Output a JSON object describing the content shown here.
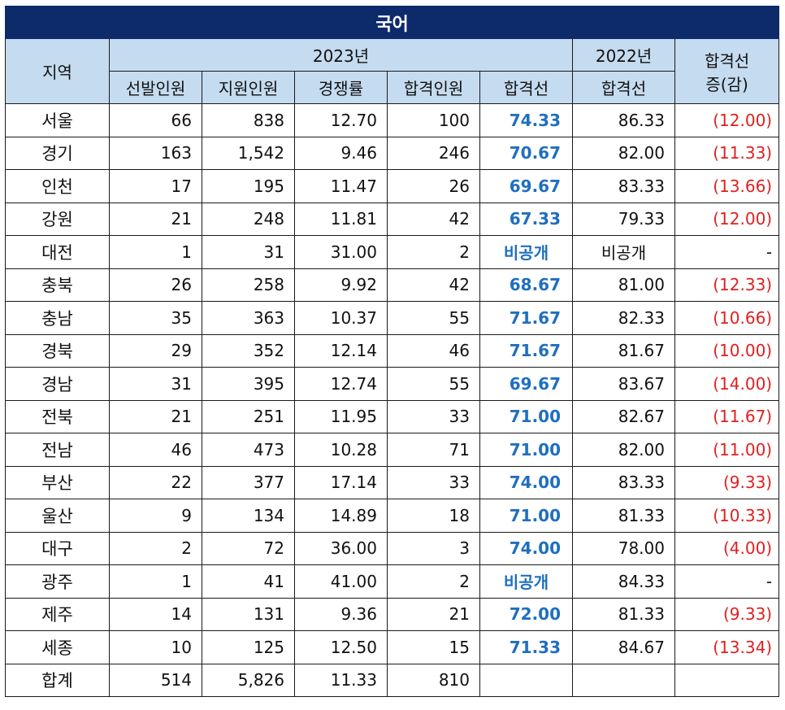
{
  "title": "국어",
  "headers": {
    "region": "지역",
    "year2023": "2023년",
    "year2022": "2022년",
    "change": "합격선\n증(감)",
    "change_line1": "합격선",
    "change_line2": "증(감)",
    "sub": [
      "선발인원",
      "지원인원",
      "경쟁률",
      "합격인원",
      "합격선"
    ],
    "sub2022": "합격선"
  },
  "rows": [
    {
      "region": "서울",
      "select": "66",
      "apply": "838",
      "ratio": "12.70",
      "passed": "100",
      "cut2023": "74.33",
      "cut2022": "86.33",
      "diff": "(12.00)"
    },
    {
      "region": "경기",
      "select": "163",
      "apply": "1,542",
      "ratio": "9.46",
      "passed": "246",
      "cut2023": "70.67",
      "cut2022": "82.00",
      "diff": "(11.33)"
    },
    {
      "region": "인천",
      "select": "17",
      "apply": "195",
      "ratio": "11.47",
      "passed": "26",
      "cut2023": "69.67",
      "cut2022": "83.33",
      "diff": "(13.66)"
    },
    {
      "region": "강원",
      "select": "21",
      "apply": "248",
      "ratio": "11.81",
      "passed": "42",
      "cut2023": "67.33",
      "cut2022": "79.33",
      "diff": "(12.00)"
    },
    {
      "region": "대전",
      "select": "1",
      "apply": "31",
      "ratio": "31.00",
      "passed": "2",
      "cut2023": "비공개",
      "cut2022": "비공개",
      "diff": "-"
    },
    {
      "region": "충북",
      "select": "26",
      "apply": "258",
      "ratio": "9.92",
      "passed": "42",
      "cut2023": "68.67",
      "cut2022": "81.00",
      "diff": "(12.33)"
    },
    {
      "region": "충남",
      "select": "35",
      "apply": "363",
      "ratio": "10.37",
      "passed": "55",
      "cut2023": "71.67",
      "cut2022": "82.33",
      "diff": "(10.66)"
    },
    {
      "region": "경북",
      "select": "29",
      "apply": "352",
      "ratio": "12.14",
      "passed": "46",
      "cut2023": "71.67",
      "cut2022": "81.67",
      "diff": "(10.00)"
    },
    {
      "region": "경남",
      "select": "31",
      "apply": "395",
      "ratio": "12.74",
      "passed": "55",
      "cut2023": "69.67",
      "cut2022": "83.67",
      "diff": "(14.00)"
    },
    {
      "region": "전북",
      "select": "21",
      "apply": "251",
      "ratio": "11.95",
      "passed": "33",
      "cut2023": "71.00",
      "cut2022": "82.67",
      "diff": "(11.67)"
    },
    {
      "region": "전남",
      "select": "46",
      "apply": "473",
      "ratio": "10.28",
      "passed": "71",
      "cut2023": "71.00",
      "cut2022": "82.00",
      "diff": "(11.00)"
    },
    {
      "region": "부산",
      "select": "22",
      "apply": "377",
      "ratio": "17.14",
      "passed": "33",
      "cut2023": "74.00",
      "cut2022": "83.33",
      "diff": "(9.33)"
    },
    {
      "region": "울산",
      "select": "9",
      "apply": "134",
      "ratio": "14.89",
      "passed": "18",
      "cut2023": "71.00",
      "cut2022": "81.33",
      "diff": "(10.33)"
    },
    {
      "region": "대구",
      "select": "2",
      "apply": "72",
      "ratio": "36.00",
      "passed": "3",
      "cut2023": "74.00",
      "cut2022": "78.00",
      "diff": "(4.00)"
    },
    {
      "region": "광주",
      "select": "1",
      "apply": "41",
      "ratio": "41.00",
      "passed": "2",
      "cut2023": "비공개",
      "cut2022": "84.33",
      "diff": "-"
    },
    {
      "region": "제주",
      "select": "14",
      "apply": "131",
      "ratio": "9.36",
      "passed": "21",
      "cut2023": "72.00",
      "cut2022": "81.33",
      "diff": "(9.33)"
    },
    {
      "region": "세종",
      "select": "10",
      "apply": "125",
      "ratio": "12.50",
      "passed": "15",
      "cut2023": "71.33",
      "cut2022": "84.67",
      "diff": "(13.34)"
    },
    {
      "region": "합계",
      "select": "514",
      "apply": "5,826",
      "ratio": "11.33",
      "passed": "810",
      "cut2023": "",
      "cut2022": "",
      "diff": ""
    }
  ],
  "colors": {
    "title_bg": "#0d2a6b",
    "header_bg": "#c5dbef",
    "cutoff_blue": "#1f6fbf",
    "decrease_red": "#e02020"
  }
}
